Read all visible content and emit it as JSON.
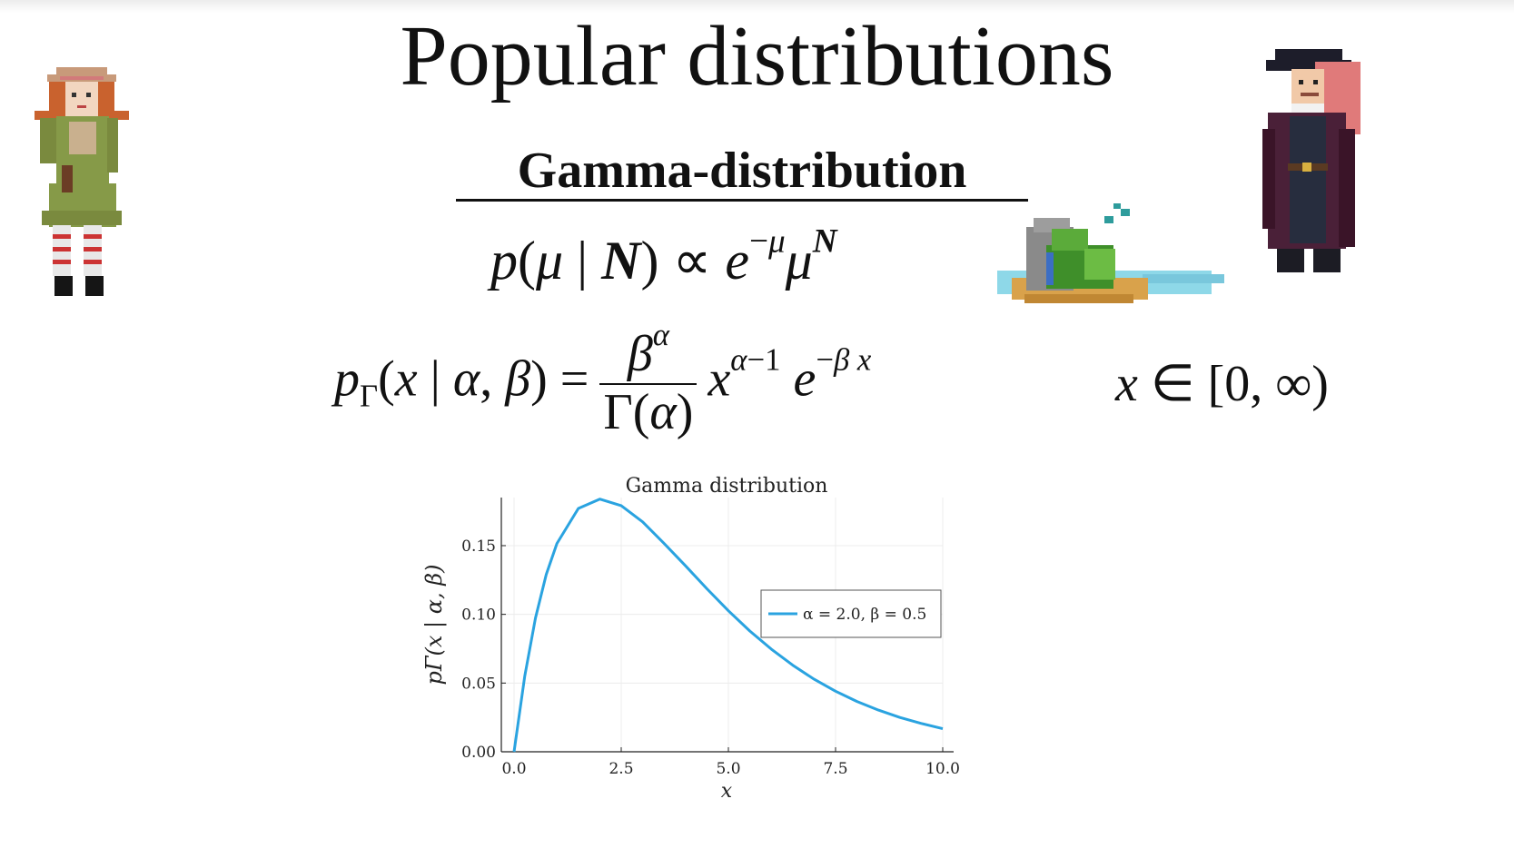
{
  "slide": {
    "title": "Popular distributions",
    "subtitle": "Gamma-distribution"
  },
  "chart_data": {
    "type": "line",
    "title": "Gamma distribution",
    "xlabel": "x",
    "ylabel": "pΓ(x | α, β)",
    "xlim": [
      0,
      10
    ],
    "ylim": [
      0,
      0.185
    ],
    "xticks": [
      "0.0",
      "2.5",
      "5.0",
      "7.5",
      "10.0"
    ],
    "yticks": [
      "0.00",
      "0.05",
      "0.10",
      "0.15"
    ],
    "grid": true,
    "legend_position": "right",
    "series": [
      {
        "name": "α = 2.0, β = 0.5",
        "color": "#2aa3e0",
        "x": [
          0,
          0.25,
          0.5,
          0.75,
          1.0,
          1.5,
          2.0,
          2.5,
          3.0,
          3.5,
          4.0,
          4.5,
          5.0,
          5.5,
          6.0,
          6.5,
          7.0,
          7.5,
          8.0,
          8.5,
          9.0,
          9.5,
          10.0
        ],
        "y": [
          0,
          0.0551,
          0.0974,
          0.1289,
          0.1516,
          0.1771,
          0.1839,
          0.1791,
          0.1673,
          0.1516,
          0.1353,
          0.1186,
          0.1026,
          0.0879,
          0.0747,
          0.063,
          0.0528,
          0.0441,
          0.0366,
          0.0303,
          0.025,
          0.0206,
          0.0168
        ]
      }
    ]
  },
  "sprites": {
    "left": "pixel-girl-with-hat",
    "island": "pixel-island-with-waterfall",
    "right": "pixel-pirate-captain"
  }
}
